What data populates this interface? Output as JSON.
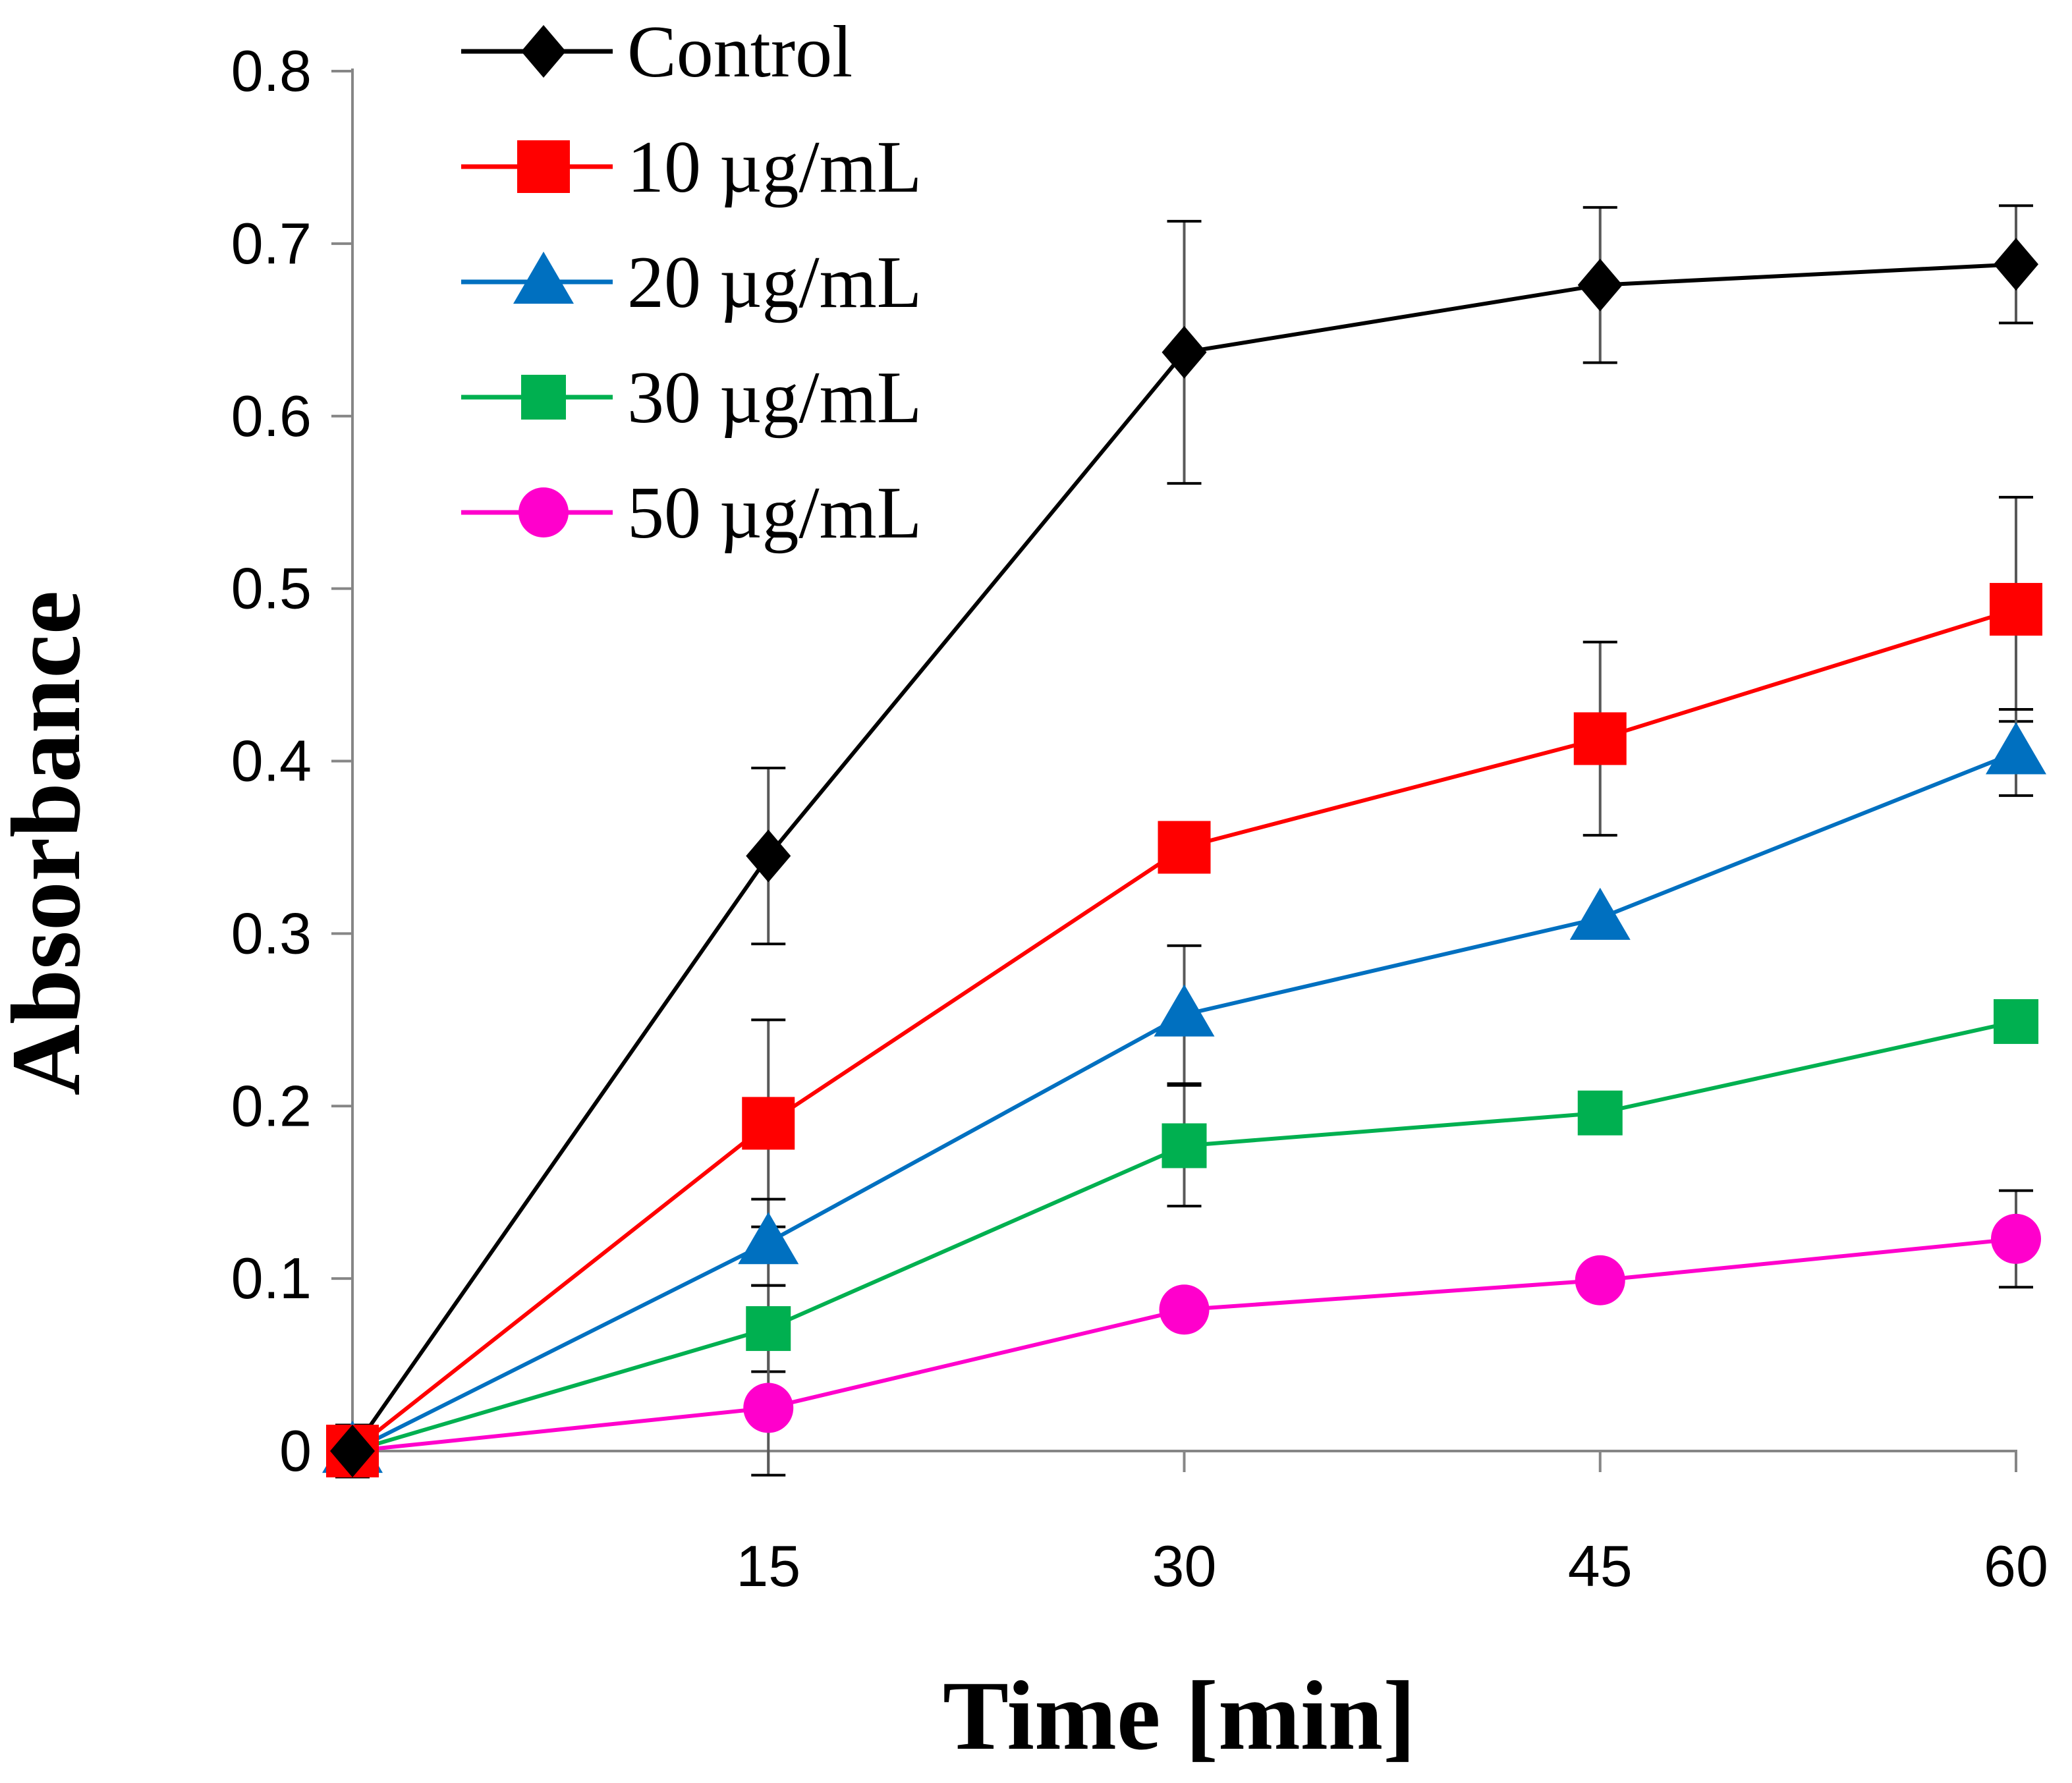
{
  "chart_data": {
    "type": "line",
    "title": "",
    "xlabel": "Time [min]",
    "ylabel": "Absorbance",
    "x": [
      0,
      15,
      30,
      45,
      60
    ],
    "x_tick_labels": [
      "15",
      "30",
      "45",
      "60"
    ],
    "x_ticks": [
      15,
      30,
      45,
      60
    ],
    "xlim": [
      0,
      60
    ],
    "ylim": [
      0,
      0.8
    ],
    "y_ticks": [
      0,
      0.1,
      0.2,
      0.3,
      0.4,
      0.5,
      0.6,
      0.7,
      0.8
    ],
    "y_tick_labels": [
      "0",
      "0.1",
      "0.2",
      "0.3",
      "0.4",
      "0.5",
      "0.6",
      "0.7",
      "0.8"
    ],
    "grid": false,
    "legend_position": "top-left",
    "series": [
      {
        "name": "Control",
        "color": "#000000",
        "marker": "diamond",
        "values": [
          0,
          0.345,
          0.637,
          0.676,
          0.688
        ],
        "errors": [
          0.015,
          0.051,
          0.076,
          0.045,
          0.034
        ]
      },
      {
        "name": "10 µg/mL",
        "color": "#ff0000",
        "marker": "square",
        "values": [
          0,
          0.19,
          0.35,
          0.413,
          0.488
        ],
        "errors": [
          0.015,
          0.06,
          0,
          0.056,
          0.065
        ]
      },
      {
        "name": "20 µg/mL",
        "color": "#0070c0",
        "marker": "triangle",
        "values": [
          0,
          0.121,
          0.253,
          0.309,
          0.405
        ],
        "errors": [
          0.015,
          0.025,
          0.04,
          0,
          0.025
        ]
      },
      {
        "name": "30 µg/mL",
        "color": "#00b050",
        "marker": "square-small",
        "values": [
          0,
          0.071,
          0.177,
          0.196,
          0.249
        ],
        "errors": [
          0.015,
          0.025,
          0.035,
          0.012,
          0.012
        ]
      },
      {
        "name": "50 µg/mL",
        "color": "#ff00cc",
        "marker": "circle",
        "values": [
          0,
          0.025,
          0.082,
          0.099,
          0.123
        ],
        "errors": [
          0.015,
          0.039,
          0,
          0,
          0.028
        ]
      }
    ]
  }
}
